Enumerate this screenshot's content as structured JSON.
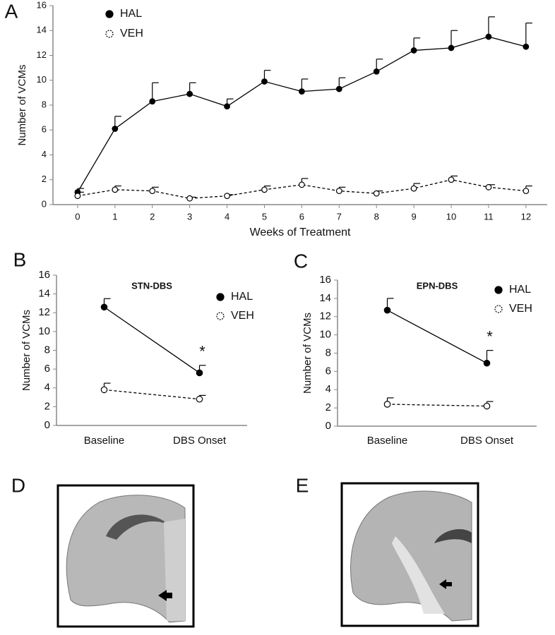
{
  "panel_labels": [
    "A",
    "B",
    "C",
    "D",
    "E"
  ],
  "chart_data": [
    {
      "type": "line",
      "y_label": "Number of VCMs",
      "x_label": "Weeks of Treatment",
      "x": [
        0,
        1,
        2,
        3,
        4,
        5,
        6,
        7,
        8,
        9,
        10,
        11,
        12
      ],
      "xlim": [
        -0.66,
        12.57
      ],
      "xticks": [
        0,
        1,
        2,
        3,
        4,
        5,
        6,
        7,
        8,
        9,
        10,
        11,
        12
      ],
      "ylim": [
        0,
        16
      ],
      "yticks": [
        0,
        2,
        4,
        6,
        8,
        10,
        12,
        14,
        16
      ],
      "series": [
        {
          "name": "HAL",
          "color": "#000000",
          "marker": "filled",
          "line": "solid",
          "values": [
            1.0,
            6.1,
            8.3,
            8.9,
            7.9,
            9.9,
            9.1,
            9.3,
            10.7,
            12.4,
            12.6,
            13.5,
            12.7
          ],
          "errors": [
            0.3,
            1.0,
            1.5,
            0.9,
            0.6,
            0.9,
            1.0,
            0.9,
            1.0,
            1.0,
            1.4,
            1.6,
            1.9
          ]
        },
        {
          "name": "VEH",
          "color": "#000000",
          "marker": "open",
          "line": "dashed",
          "values": [
            0.7,
            1.2,
            1.1,
            0.5,
            0.7,
            1.2,
            1.6,
            1.1,
            0.9,
            1.3,
            2.0,
            1.4,
            1.1
          ],
          "errors": [
            0.3,
            0.3,
            0.3,
            0.1,
            0.1,
            0.3,
            0.5,
            0.3,
            0.2,
            0.4,
            0.3,
            0.2,
            0.4
          ]
        }
      ]
    },
    {
      "type": "line",
      "title": "STN-DBS",
      "y_label": "Number of VCMs",
      "annotation": "*",
      "categories": [
        "Baseline",
        "DBS Onset"
      ],
      "ylim": [
        0,
        16
      ],
      "yticks": [
        0,
        2,
        4,
        6,
        8,
        10,
        12,
        14,
        16
      ],
      "series": [
        {
          "name": "HAL",
          "color": "#000000",
          "marker": "filled",
          "line": "solid",
          "values": [
            12.6,
            5.6
          ],
          "errors": [
            0.9,
            0.8
          ]
        },
        {
          "name": "VEH",
          "color": "#000000",
          "marker": "open",
          "line": "dashed",
          "values": [
            3.8,
            2.8
          ],
          "errors": [
            0.7,
            0.4
          ]
        }
      ]
    },
    {
      "type": "line",
      "title": "EPN-DBS",
      "y_label": "Number of VCMs",
      "annotation": "*",
      "categories": [
        "Baseline",
        "DBS Onset"
      ],
      "ylim": [
        0,
        16
      ],
      "yticks": [
        0,
        2,
        4,
        6,
        8,
        10,
        12,
        14,
        16
      ],
      "series": [
        {
          "name": "HAL",
          "color": "#000000",
          "marker": "filled",
          "line": "solid",
          "values": [
            12.7,
            6.9
          ],
          "errors": [
            1.3,
            1.4
          ]
        },
        {
          "name": "VEH",
          "color": "#000000",
          "marker": "open",
          "line": "dashed",
          "values": [
            2.4,
            2.2
          ],
          "errors": [
            0.7,
            0.5
          ]
        }
      ]
    }
  ]
}
